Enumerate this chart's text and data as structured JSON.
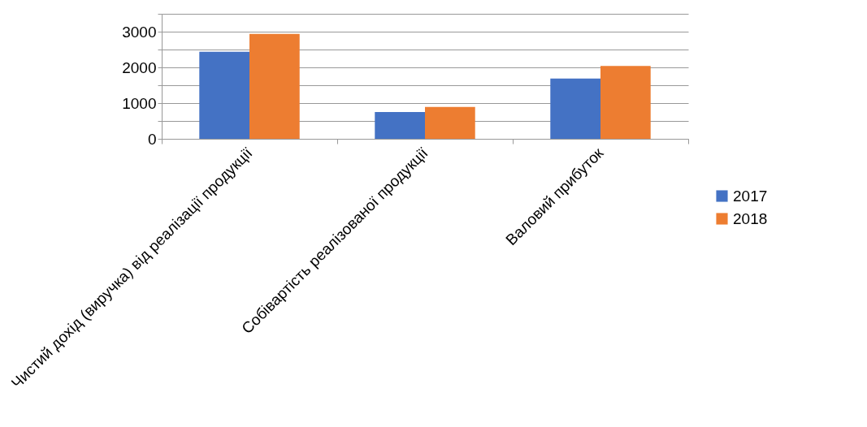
{
  "chart_data": {
    "type": "bar",
    "categories": [
      "Чистий дохід (виручка) від реалізації продукції",
      "Собівартість реалізованої продукції",
      "Валовий прибуток"
    ],
    "series": [
      {
        "name": "2017",
        "color": "#4472c4",
        "values": [
          2440,
          750,
          1690
        ]
      },
      {
        "name": "2018",
        "color": "#ed7d31",
        "values": [
          2940,
          890,
          2040
        ]
      }
    ],
    "ylim": [
      0,
      3500
    ],
    "yticks": [
      0,
      {
        "value": 500,
        "label": null
      },
      1000,
      {
        "value": 1500,
        "label": null
      },
      2000,
      {
        "value": 2500,
        "label": null
      },
      3000,
      {
        "value": 3500,
        "label": null
      }
    ],
    "grid": true,
    "legend": "right"
  }
}
